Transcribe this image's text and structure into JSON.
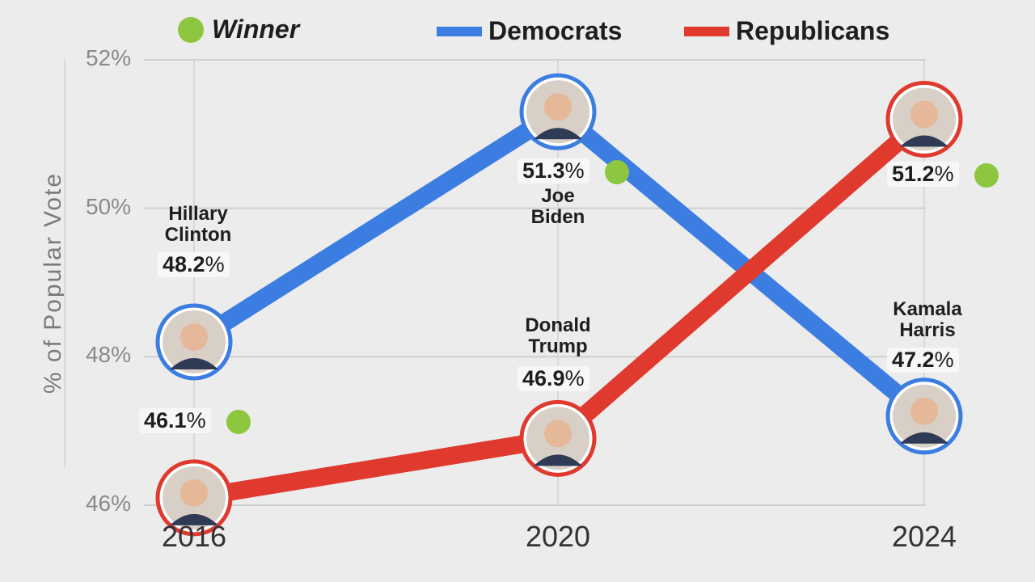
{
  "chart_data": {
    "type": "line",
    "title": "",
    "ylabel": "% of Popular Vote",
    "xlabel": "",
    "ylim": [
      46,
      52
    ],
    "yticks": [
      "46%",
      "48%",
      "50%",
      "52%"
    ],
    "categories": [
      "2016",
      "2020",
      "2024"
    ],
    "series": [
      {
        "name": "Democrats",
        "color": "#3b7de1",
        "values": [
          48.2,
          51.3,
          47.2
        ],
        "candidates": [
          {
            "first": "Hillary",
            "last": "Clinton",
            "pct": "48.2%",
            "winner": false
          },
          {
            "first": "Joe",
            "last": "Biden",
            "pct": "51.3%",
            "winner": true
          },
          {
            "first": "Kamala",
            "last": "Harris",
            "pct": "47.2%",
            "winner": false
          }
        ]
      },
      {
        "name": "Republicans",
        "color": "#e03a2f",
        "values": [
          46.1,
          46.9,
          51.2
        ],
        "candidates": [
          {
            "first": "",
            "last": "",
            "pct": "46.1%",
            "winner": true
          },
          {
            "first": "Donald",
            "last": "Trump",
            "pct": "46.9%",
            "winner": false
          },
          {
            "first": "",
            "last": "",
            "pct": "51.2%",
            "winner": true
          }
        ]
      }
    ],
    "legend": {
      "winner_label": "Winner",
      "winner_color": "#8dc63f",
      "democrats_label": "Democrats",
      "republicans_label": "Republicans"
    }
  }
}
